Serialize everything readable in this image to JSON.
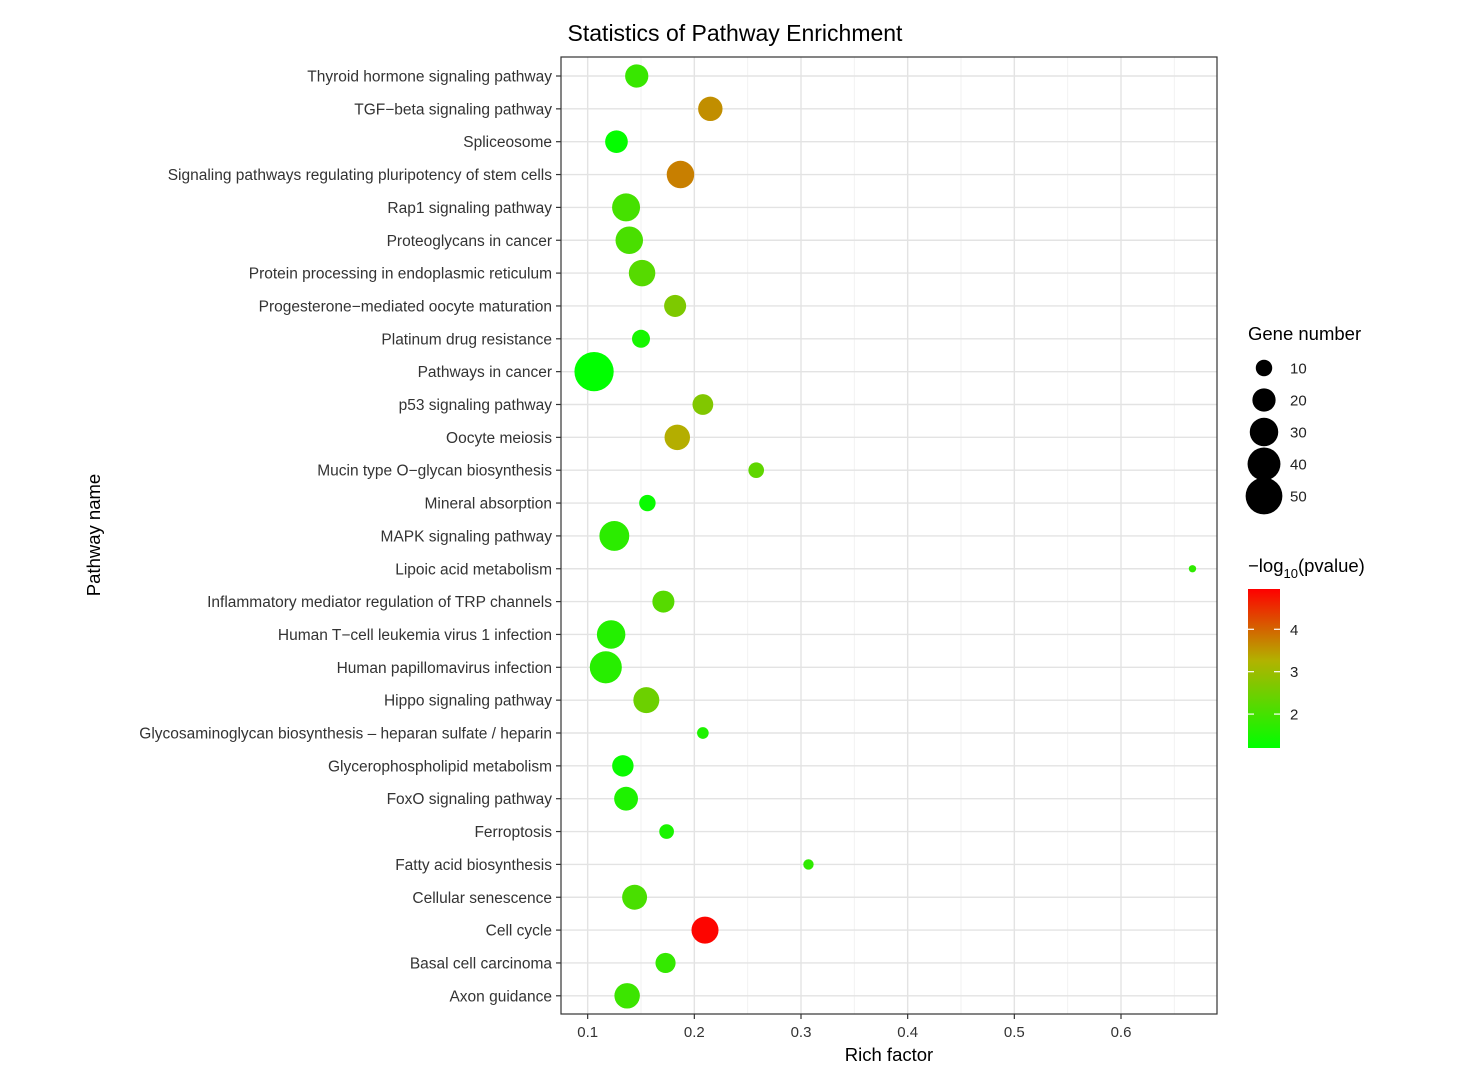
{
  "chart_data": {
    "type": "scatter",
    "title": "Statistics of Pathway Enrichment",
    "xlabel": "Rich factor",
    "ylabel": "Pathway name",
    "xlim": [
      0.075,
      0.69
    ],
    "xticks": [
      "0.1",
      "0.2",
      "0.3",
      "0.4",
      "0.5",
      "0.6"
    ],
    "grid": true,
    "categories": [
      "Axon guidance",
      "Basal cell carcinoma",
      "Cell cycle",
      "Cellular senescence",
      "Fatty acid biosynthesis",
      "Ferroptosis",
      "FoxO signaling pathway",
      "Glycerophospholipid metabolism",
      "Glycosaminoglycan biosynthesis – heparan sulfate / heparin",
      "Hippo signaling pathway",
      "Human papillomavirus infection",
      "Human T−cell leukemia virus 1 infection",
      "Inflammatory mediator regulation of TRP channels",
      "Lipoic acid metabolism",
      "MAPK signaling pathway",
      "Mineral absorption",
      "Mucin type O−glycan biosynthesis",
      "Oocyte meiosis",
      "p53 signaling pathway",
      "Pathways in cancer",
      "Platinum drug resistance",
      "Progesterone−mediated oocyte maturation",
      "Protein processing in endoplasmic reticulum",
      "Proteoglycans in cancer",
      "Rap1 signaling pathway",
      "Signaling pathways regulating pluripotency of stem cells",
      "Spliceosome",
      "TGF−beta signaling pathway",
      "Thyroid hormone signaling pathway"
    ],
    "points": [
      {
        "pathway": "Axon guidance",
        "rich_factor": 0.137,
        "gene_number": 24,
        "neg_log10_pvalue": 1.9
      },
      {
        "pathway": "Basal cell carcinoma",
        "rich_factor": 0.173,
        "gene_number": 15,
        "neg_log10_pvalue": 1.8
      },
      {
        "pathway": "Cell cycle",
        "rich_factor": 0.21,
        "gene_number": 27,
        "neg_log10_pvalue": 4.9
      },
      {
        "pathway": "Cellular senescence",
        "rich_factor": 0.144,
        "gene_number": 23,
        "neg_log10_pvalue": 2.05
      },
      {
        "pathway": "Fatty acid biosynthesis",
        "rich_factor": 0.307,
        "gene_number": 4,
        "neg_log10_pvalue": 1.75
      },
      {
        "pathway": "Ferroptosis",
        "rich_factor": 0.174,
        "gene_number": 8,
        "neg_log10_pvalue": 1.5
      },
      {
        "pathway": "FoxO signaling pathway",
        "rich_factor": 0.136,
        "gene_number": 21,
        "neg_log10_pvalue": 1.55
      },
      {
        "pathway": "Glycerophospholipid metabolism",
        "rich_factor": 0.133,
        "gene_number": 17,
        "neg_log10_pvalue": 1.3
      },
      {
        "pathway": "Glycosaminoglycan biosynthesis – heparan sulfate / heparin",
        "rich_factor": 0.208,
        "gene_number": 5,
        "neg_log10_pvalue": 1.55
      },
      {
        "pathway": "Hippo signaling pathway",
        "rich_factor": 0.155,
        "gene_number": 25,
        "neg_log10_pvalue": 2.45
      },
      {
        "pathway": "Human papillomavirus infection",
        "rich_factor": 0.117,
        "gene_number": 38,
        "neg_log10_pvalue": 1.65
      },
      {
        "pathway": "Human T−cell leukemia virus 1 infection",
        "rich_factor": 0.122,
        "gene_number": 30,
        "neg_log10_pvalue": 1.6
      },
      {
        "pathway": "Inflammatory mediator regulation of TRP channels",
        "rich_factor": 0.171,
        "gene_number": 18,
        "neg_log10_pvalue": 2.2
      },
      {
        "pathway": "Lipoic acid metabolism",
        "rich_factor": 0.667,
        "gene_number": 2,
        "neg_log10_pvalue": 1.75
      },
      {
        "pathway": "MAPK signaling pathway",
        "rich_factor": 0.125,
        "gene_number": 33,
        "neg_log10_pvalue": 1.7
      },
      {
        "pathway": "Mineral absorption",
        "rich_factor": 0.156,
        "gene_number": 10,
        "neg_log10_pvalue": 1.3
      },
      {
        "pathway": "Mucin type O−glycan biosynthesis",
        "rich_factor": 0.258,
        "gene_number": 9,
        "neg_log10_pvalue": 2.3
      },
      {
        "pathway": "Oocyte meiosis",
        "rich_factor": 0.184,
        "gene_number": 24,
        "neg_log10_pvalue": 3.3
      },
      {
        "pathway": "p53 signaling pathway",
        "rich_factor": 0.208,
        "gene_number": 16,
        "neg_log10_pvalue": 2.7
      },
      {
        "pathway": "Pathways in cancer",
        "rich_factor": 0.106,
        "gene_number": 57,
        "neg_log10_pvalue": 1.2
      },
      {
        "pathway": "Platinum drug resistance",
        "rich_factor": 0.15,
        "gene_number": 12,
        "neg_log10_pvalue": 1.45
      },
      {
        "pathway": "Progesterone−mediated oocyte maturation",
        "rich_factor": 0.182,
        "gene_number": 18,
        "neg_log10_pvalue": 2.65
      },
      {
        "pathway": "Protein processing in endoplasmic reticulum",
        "rich_factor": 0.151,
        "gene_number": 26,
        "neg_log10_pvalue": 2.2
      },
      {
        "pathway": "Proteoglycans in cancer",
        "rich_factor": 0.139,
        "gene_number": 28,
        "neg_log10_pvalue": 2.05
      },
      {
        "pathway": "Rap1 signaling pathway",
        "rich_factor": 0.136,
        "gene_number": 29,
        "neg_log10_pvalue": 2.0
      },
      {
        "pathway": "Signaling pathways regulating pluripotency of stem cells",
        "rich_factor": 0.187,
        "gene_number": 28,
        "neg_log10_pvalue": 3.75
      },
      {
        "pathway": "Spliceosome",
        "rich_factor": 0.127,
        "gene_number": 19,
        "neg_log10_pvalue": 1.25
      },
      {
        "pathway": "TGF−beta signaling pathway",
        "rich_factor": 0.215,
        "gene_number": 22,
        "neg_log10_pvalue": 3.6
      },
      {
        "pathway": "Thyroid hormone signaling pathway",
        "rich_factor": 0.146,
        "gene_number": 20,
        "neg_log10_pvalue": 1.85
      }
    ],
    "legend_size": {
      "title": "Gene number",
      "values": [
        10,
        20,
        30,
        40,
        50
      ],
      "labels": [
        "10",
        "20",
        "30",
        "40",
        "50"
      ]
    },
    "legend_color": {
      "title_prefix": "−log",
      "title_subscript": "10",
      "title_suffix": "(pvalue)",
      "range": [
        1.2,
        4.95
      ],
      "ticks": [
        2,
        3,
        4
      ],
      "tick_labels": [
        "2",
        "3",
        "4"
      ],
      "colors": {
        "low": "#00ff00",
        "mid": "#b2b200",
        "high": "#ff0000"
      }
    },
    "legend_placement": "right"
  }
}
